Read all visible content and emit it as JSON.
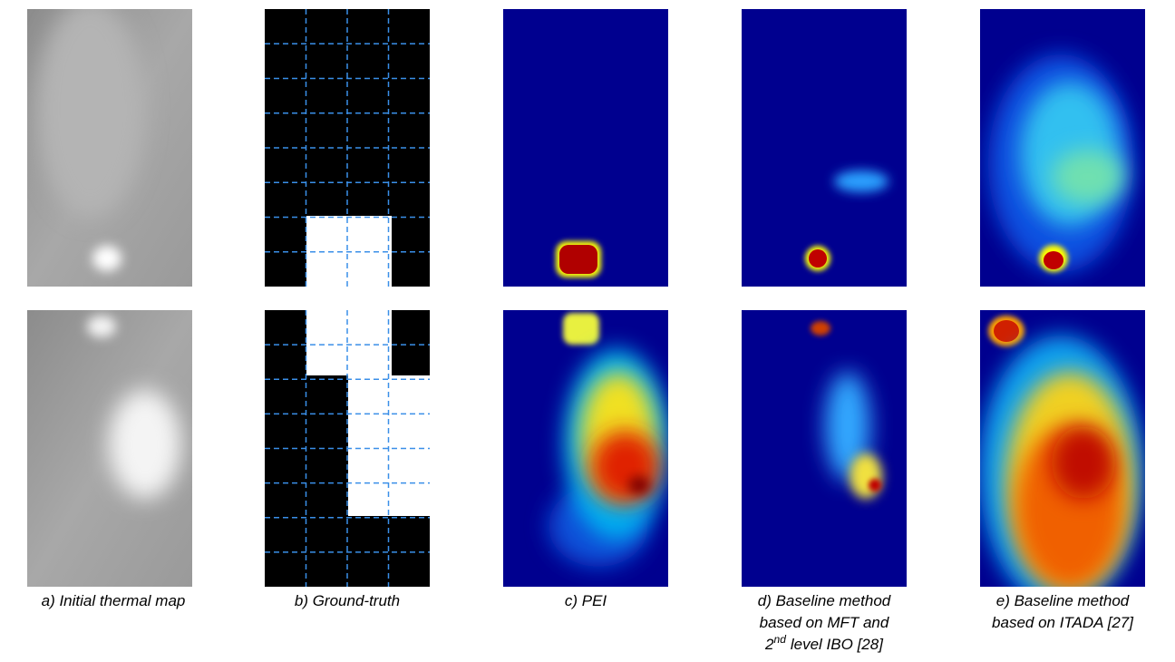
{
  "panels": [
    {
      "caption": [
        "a) Initial thermal map"
      ]
    },
    {
      "caption": [
        "b) Ground-truth"
      ]
    },
    {
      "caption": [
        "c) PEI"
      ]
    },
    {
      "caption": [
        "d) Baseline method",
        "based on MFT and"
      ],
      "caption_last": {
        "base": "2",
        "sup": "nd",
        "rest": "level IBO [28]"
      }
    },
    {
      "caption": [
        "e) Baseline method",
        "based on ITADA [27]"
      ]
    }
  ]
}
